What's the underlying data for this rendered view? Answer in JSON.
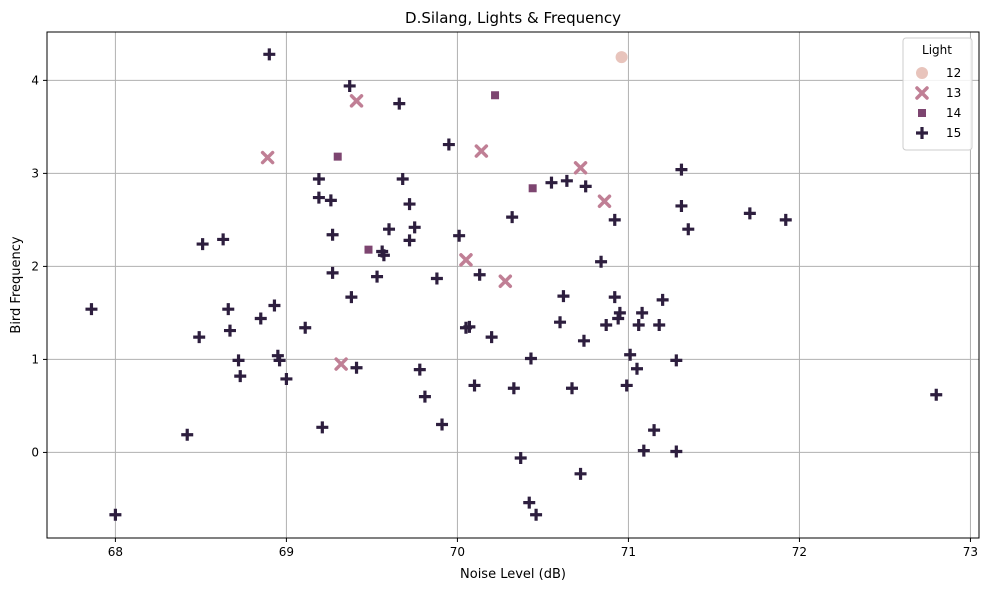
{
  "chart_data": {
    "type": "scatter",
    "title": "D.Silang, Lights & Frequency",
    "xlabel": "Noise Level (dB)",
    "ylabel": "Bird Frequency",
    "xlim": [
      67.6,
      73.05
    ],
    "ylim": [
      -0.92,
      4.52
    ],
    "xticks": [
      "68",
      "69",
      "70",
      "71",
      "72",
      "73"
    ],
    "yticks": [
      "0",
      "1",
      "2",
      "3",
      "4"
    ],
    "grid": true,
    "legend": {
      "title": "Light",
      "placement": "top-right",
      "entries": [
        {
          "label": "12",
          "marker": "circle",
          "color": "#e8c4bc"
        },
        {
          "label": "13",
          "marker": "x",
          "color": "#c07f95"
        },
        {
          "label": "14",
          "marker": "square",
          "color": "#7d4570"
        },
        {
          "label": "15",
          "marker": "plus",
          "color": "#2d1e3e"
        }
      ]
    },
    "series": [
      {
        "name": "12",
        "marker": "circle",
        "color": "#e8c4bc",
        "points": [
          [
            70.96,
            4.25
          ]
        ]
      },
      {
        "name": "13",
        "marker": "x",
        "color": "#c07f95",
        "points": [
          [
            69.41,
            3.78
          ],
          [
            68.89,
            3.17
          ],
          [
            70.14,
            3.24
          ],
          [
            70.72,
            3.06
          ],
          [
            70.86,
            2.7
          ],
          [
            70.05,
            2.07
          ],
          [
            70.28,
            1.84
          ],
          [
            69.32,
            0.95
          ]
        ]
      },
      {
        "name": "14",
        "marker": "square",
        "color": "#7d4570",
        "points": [
          [
            70.22,
            3.84
          ],
          [
            69.3,
            3.18
          ],
          [
            70.44,
            2.84
          ],
          [
            69.48,
            2.18
          ]
        ]
      },
      {
        "name": "15",
        "marker": "plus",
        "color": "#2d1e3e",
        "points": [
          [
            68.9,
            4.28
          ],
          [
            69.37,
            3.94
          ],
          [
            69.66,
            3.75
          ],
          [
            69.95,
            3.31
          ],
          [
            69.19,
            2.94
          ],
          [
            69.68,
            2.94
          ],
          [
            69.19,
            2.74
          ],
          [
            69.26,
            2.71
          ],
          [
            69.72,
            2.67
          ],
          [
            70.32,
            2.53
          ],
          [
            70.55,
            2.9
          ],
          [
            70.64,
            2.92
          ],
          [
            70.75,
            2.86
          ],
          [
            71.31,
            3.04
          ],
          [
            71.31,
            2.65
          ],
          [
            71.71,
            2.57
          ],
          [
            71.92,
            2.5
          ],
          [
            70.92,
            2.5
          ],
          [
            71.35,
            2.4
          ],
          [
            68.51,
            2.24
          ],
          [
            68.63,
            2.29
          ],
          [
            69.27,
            2.34
          ],
          [
            69.6,
            2.4
          ],
          [
            69.75,
            2.42
          ],
          [
            69.72,
            2.28
          ],
          [
            70.01,
            2.33
          ],
          [
            69.56,
            2.16
          ],
          [
            69.57,
            2.12
          ],
          [
            70.84,
            2.05
          ],
          [
            69.27,
            1.93
          ],
          [
            69.53,
            1.89
          ],
          [
            69.88,
            1.87
          ],
          [
            70.13,
            1.91
          ],
          [
            67.86,
            1.54
          ],
          [
            68.66,
            1.54
          ],
          [
            68.93,
            1.58
          ],
          [
            69.38,
            1.67
          ],
          [
            70.62,
            1.68
          ],
          [
            70.92,
            1.67
          ],
          [
            71.2,
            1.64
          ],
          [
            68.85,
            1.44
          ],
          [
            70.94,
            1.44
          ],
          [
            71.08,
            1.5
          ],
          [
            70.95,
            1.5
          ],
          [
            70.6,
            1.4
          ],
          [
            70.87,
            1.37
          ],
          [
            71.06,
            1.37
          ],
          [
            71.18,
            1.37
          ],
          [
            69.11,
            1.34
          ],
          [
            70.05,
            1.34
          ],
          [
            70.07,
            1.35
          ],
          [
            68.49,
            1.24
          ],
          [
            68.67,
            1.31
          ],
          [
            70.2,
            1.24
          ],
          [
            70.74,
            1.2
          ],
          [
            68.95,
            1.04
          ],
          [
            68.96,
            0.99
          ],
          [
            68.72,
            0.99
          ],
          [
            70.43,
            1.01
          ],
          [
            71.01,
            1.05
          ],
          [
            71.28,
            0.99
          ],
          [
            68.73,
            0.82
          ],
          [
            69.0,
            0.79
          ],
          [
            69.41,
            0.91
          ],
          [
            69.78,
            0.89
          ],
          [
            71.05,
            0.9
          ],
          [
            70.1,
            0.72
          ],
          [
            70.33,
            0.69
          ],
          [
            70.67,
            0.69
          ],
          [
            70.99,
            0.72
          ],
          [
            69.81,
            0.6
          ],
          [
            72.8,
            0.62
          ],
          [
            69.91,
            0.3
          ],
          [
            69.21,
            0.27
          ],
          [
            68.42,
            0.19
          ],
          [
            71.15,
            0.24
          ],
          [
            71.09,
            0.02
          ],
          [
            71.28,
            0.01
          ],
          [
            70.37,
            -0.06
          ],
          [
            70.72,
            -0.23
          ],
          [
            70.42,
            -0.54
          ],
          [
            70.46,
            -0.67
          ],
          [
            68.0,
            -0.67
          ]
        ]
      }
    ]
  }
}
